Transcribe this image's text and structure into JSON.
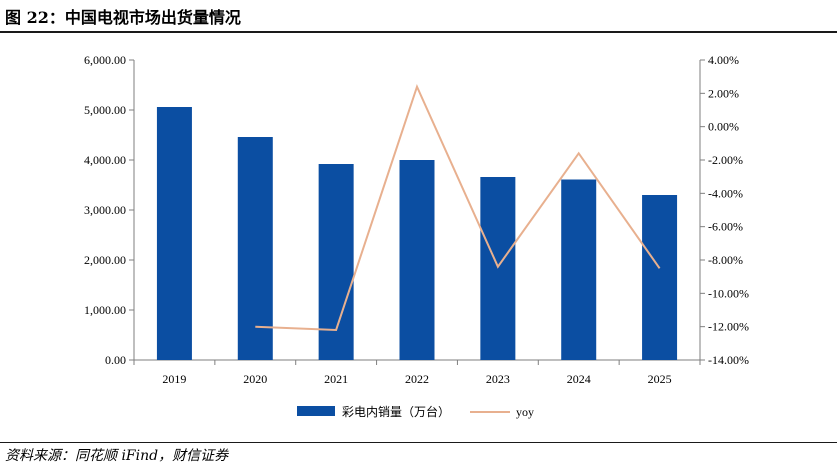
{
  "figure": {
    "title": "图 22：中国电视市场出货量情况",
    "source": "资料来源：同花顺 iFind，财信证券"
  },
  "colors": {
    "bar": "#0b4ea2",
    "line": "#e8b08f",
    "axis": "#7f7f7f"
  },
  "chart_data": {
    "type": "bar",
    "categories": [
      "2019",
      "2020",
      "2021",
      "2022",
      "2023",
      "2024",
      "2025"
    ],
    "series": [
      {
        "name": "彩电内销量（万台）",
        "type": "bar",
        "axis": "left",
        "values": [
          5060,
          4460,
          3920,
          4000,
          3660,
          3610,
          3300
        ]
      },
      {
        "name": "yoy",
        "type": "line",
        "axis": "right",
        "values": [
          null,
          -12.0,
          -12.2,
          2.4,
          -8.4,
          -1.6,
          -8.5
        ]
      }
    ],
    "y_left": {
      "min": 0,
      "max": 6000,
      "step": 1000,
      "tick_labels": [
        "0.00",
        "1,000.00",
        "2,000.00",
        "3,000.00",
        "4,000.00",
        "5,000.00",
        "6,000.00"
      ]
    },
    "y_right": {
      "min": -14,
      "max": 4,
      "step": 2,
      "tick_labels": [
        "-14.00%",
        "-12.00%",
        "-10.00%",
        "-8.00%",
        "-6.00%",
        "-4.00%",
        "-2.00%",
        "0.00%",
        "2.00%",
        "4.00%"
      ]
    },
    "grid": false,
    "legend_position": "bottom"
  }
}
